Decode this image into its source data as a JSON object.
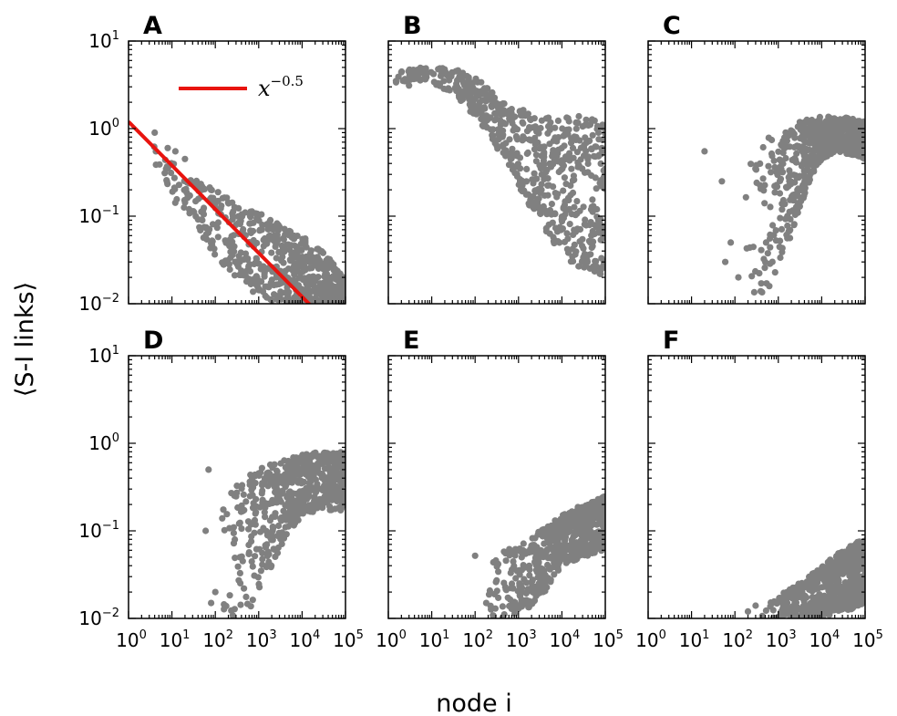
{
  "figure": {
    "ylabel": "⟨S-I links⟩",
    "xlabel": "node i"
  },
  "colors": {
    "points": "#808080",
    "fit_line": "#e8140f",
    "axes": "#000000"
  },
  "chart_data": [
    {
      "panel": "A",
      "type": "scatter",
      "xscale": "log",
      "yscale": "log",
      "xlim": [
        1,
        100000
      ],
      "ylim": [
        0.01,
        10
      ],
      "yticks": [
        "10^1",
        "10^0",
        "10^-1",
        "10^-2"
      ],
      "legend": {
        "label_base": "x",
        "label_exp": "−0.5",
        "placement": "top"
      },
      "fit_line": {
        "formula": "x^-0.5",
        "prefactor": 1.2,
        "exponent": -0.5
      },
      "series": [
        {
          "band": [
            [
              3,
              0.82,
              0.55
            ],
            [
              10,
              0.42,
              0.15
            ],
            [
              30,
              0.28,
              0.08
            ],
            [
              100,
              0.2,
              0.035
            ],
            [
              300,
              0.14,
              0.02
            ],
            [
              1000,
              0.11,
              0.012
            ],
            [
              3000,
              0.08,
              0.01
            ],
            [
              10000,
              0.06,
              0.01
            ],
            [
              40000,
              0.035,
              0.01
            ],
            [
              100000,
              0.018,
              0.01
            ]
          ],
          "outliers": [
            [
              4,
              0.9
            ],
            [
              12,
              0.55
            ],
            [
              20,
              0.45
            ],
            [
              25,
              0.12
            ],
            [
              50,
              0.09
            ],
            [
              8,
              0.6
            ]
          ]
        }
      ]
    },
    {
      "panel": "B",
      "type": "scatter",
      "xscale": "log",
      "yscale": "log",
      "xlim": [
        1,
        100000
      ],
      "ylim": [
        0.01,
        10
      ],
      "series": [
        {
          "band": [
            [
              1,
              4.2,
              3.2
            ],
            [
              5,
              5.0,
              3.6
            ],
            [
              20,
              5.0,
              2.8
            ],
            [
              60,
              4.5,
              1.8
            ],
            [
              200,
              3.0,
              0.9
            ],
            [
              600,
              2.0,
              0.35
            ],
            [
              2000,
              1.5,
              0.12
            ],
            [
              6000,
              1.3,
              0.05
            ],
            [
              20000,
              1.4,
              0.025
            ],
            [
              100000,
              1.3,
              0.02
            ]
          ],
          "outliers": [
            [
              1.5,
              3.5
            ],
            [
              2,
              4.4
            ],
            [
              3,
              3.1
            ]
          ]
        }
      ]
    },
    {
      "panel": "C",
      "type": "scatter",
      "xscale": "log",
      "yscale": "log",
      "xlim": [
        1,
        100000
      ],
      "ylim": [
        0.01,
        10
      ],
      "series": [
        {
          "band": [
            [
              150,
              0.35,
              0.012
            ],
            [
              300,
              0.6,
              0.012
            ],
            [
              700,
              0.85,
              0.015
            ],
            [
              1500,
              1.0,
              0.04
            ],
            [
              3000,
              1.2,
              0.12
            ],
            [
              8000,
              1.35,
              0.4
            ],
            [
              20000,
              1.4,
              0.55
            ],
            [
              50000,
              1.3,
              0.5
            ],
            [
              100000,
              1.2,
              0.45
            ]
          ],
          "outliers": [
            [
              20,
              0.55
            ],
            [
              50,
              0.25
            ],
            [
              60,
              0.03
            ],
            [
              80,
              0.05
            ],
            [
              120,
              0.02
            ]
          ]
        }
      ]
    },
    {
      "panel": "D",
      "type": "scatter",
      "xscale": "log",
      "yscale": "log",
      "xlim": [
        1,
        100000
      ],
      "ylim": [
        0.01,
        10
      ],
      "series": [
        {
          "band": [
            [
              120,
              0.3,
              0.01
            ],
            [
              300,
              0.35,
              0.01
            ],
            [
              600,
              0.45,
              0.012
            ],
            [
              1500,
              0.55,
              0.03
            ],
            [
              4000,
              0.65,
              0.08
            ],
            [
              10000,
              0.75,
              0.15
            ],
            [
              30000,
              0.8,
              0.17
            ],
            [
              100000,
              0.8,
              0.17
            ]
          ],
          "outliers": [
            [
              70,
              0.5
            ],
            [
              60,
              0.1
            ],
            [
              80,
              0.015
            ],
            [
              100,
              0.02
            ]
          ]
        }
      ]
    },
    {
      "panel": "E",
      "type": "scatter",
      "xscale": "log",
      "yscale": "log",
      "xlim": [
        1,
        100000
      ],
      "ylim": [
        0.01,
        10
      ],
      "series": [
        {
          "band": [
            [
              200,
              0.04,
              0.01
            ],
            [
              500,
              0.06,
              0.01
            ],
            [
              1500,
              0.08,
              0.012
            ],
            [
              4000,
              0.11,
              0.02
            ],
            [
              10000,
              0.15,
              0.04
            ],
            [
              30000,
              0.2,
              0.05
            ],
            [
              100000,
              0.25,
              0.06
            ]
          ],
          "outliers": [
            [
              100,
              0.052
            ],
            [
              180,
              0.015
            ]
          ]
        }
      ]
    },
    {
      "panel": "F",
      "type": "scatter",
      "xscale": "log",
      "yscale": "log",
      "xlim": [
        1,
        100000
      ],
      "ylim": [
        0.01,
        10
      ],
      "series": [
        {
          "band": [
            [
              400,
              0.013,
              0.01
            ],
            [
              1000,
              0.018,
              0.01
            ],
            [
              3000,
              0.025,
              0.01
            ],
            [
              10000,
              0.04,
              0.01
            ],
            [
              30000,
              0.06,
              0.012
            ],
            [
              100000,
              0.085,
              0.014
            ]
          ],
          "outliers": [
            [
              200,
              0.012
            ],
            [
              300,
              0.014
            ]
          ]
        }
      ]
    }
  ]
}
